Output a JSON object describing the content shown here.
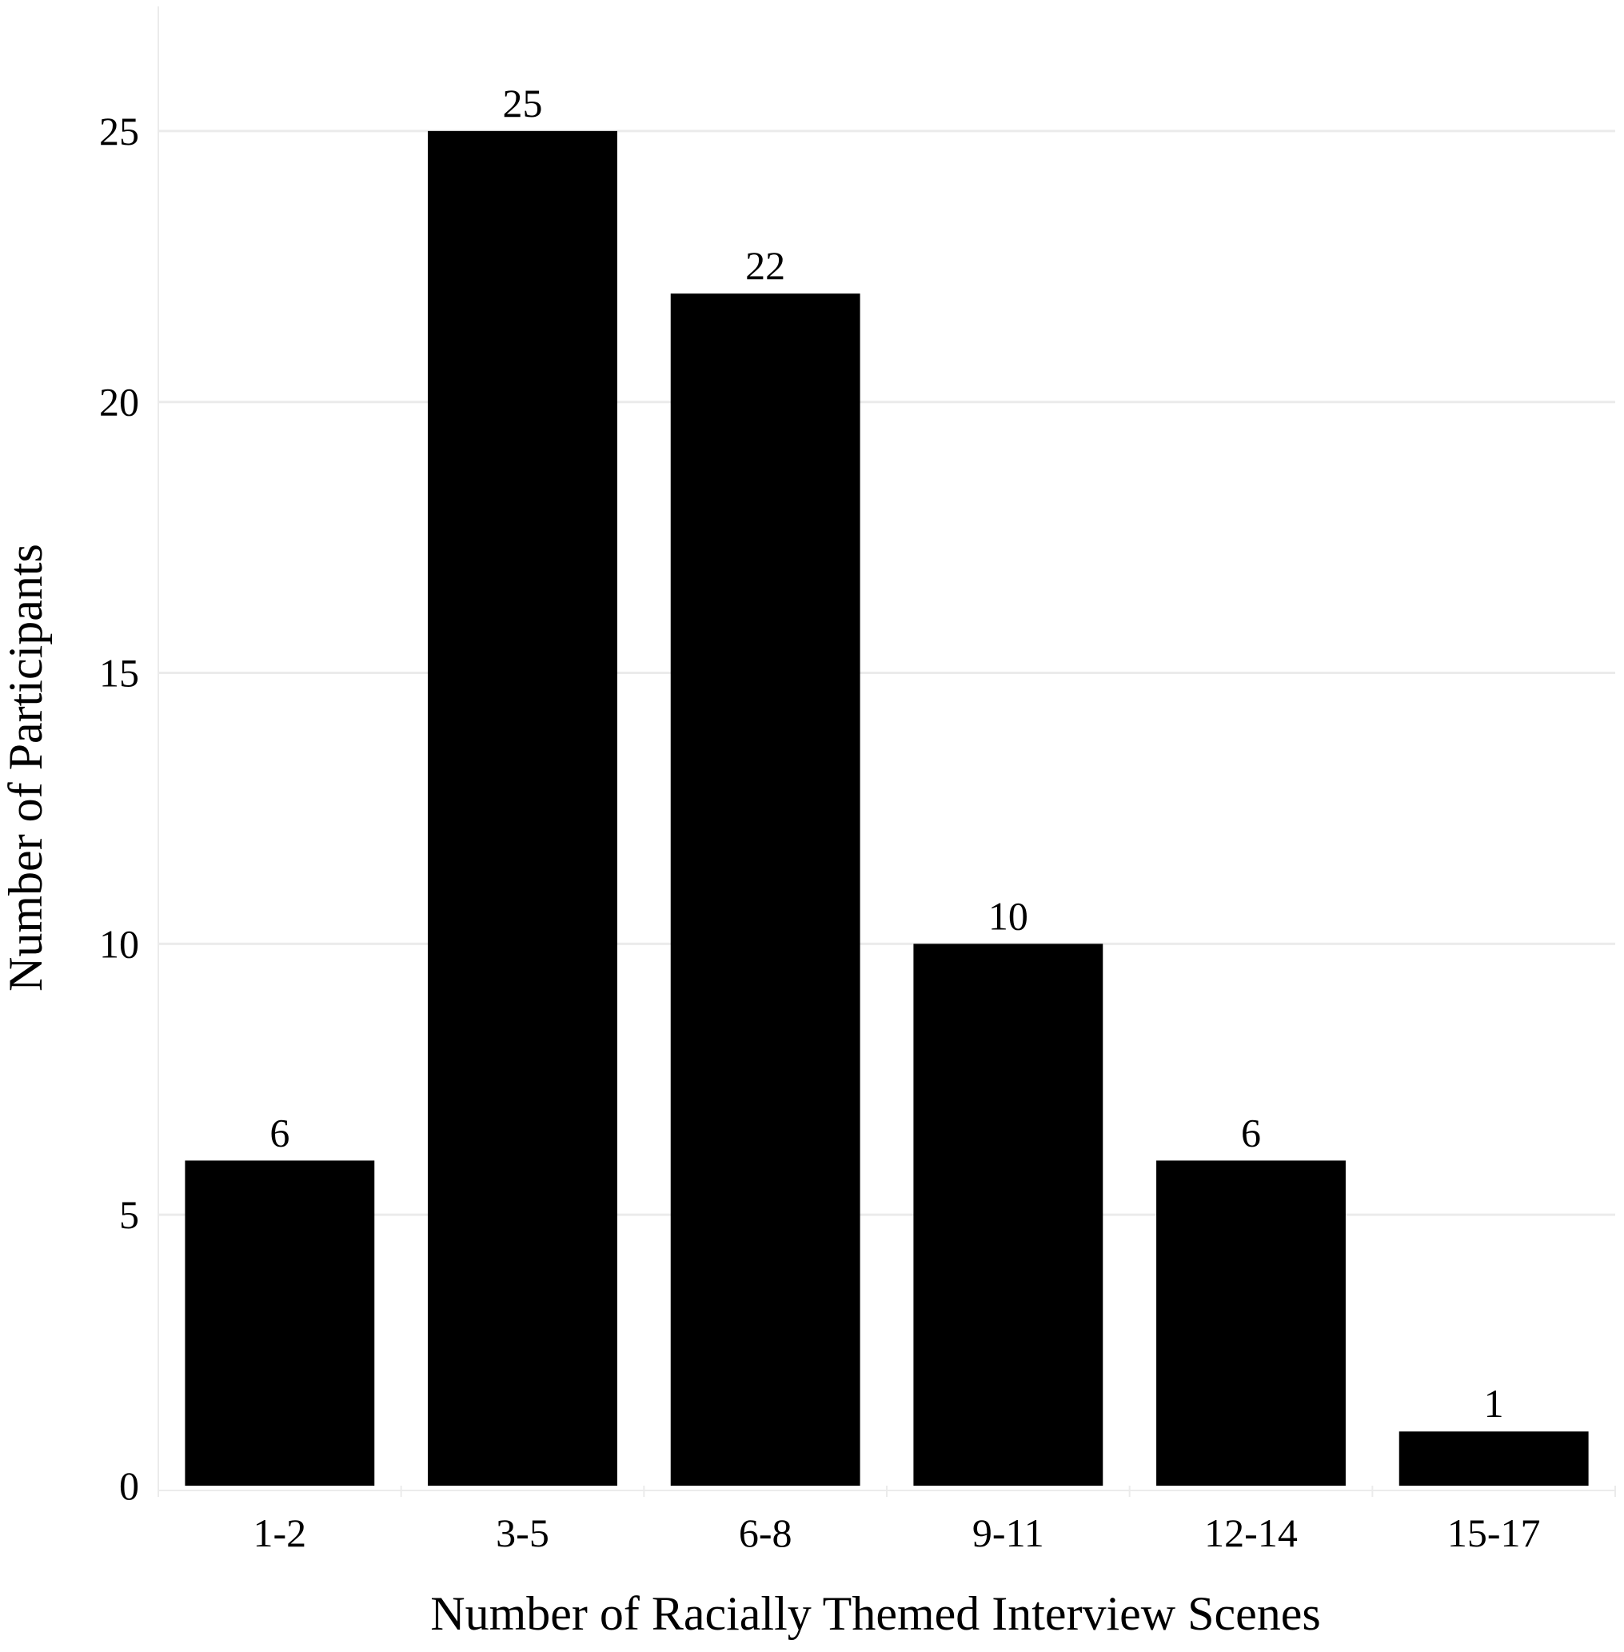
{
  "chart_data": {
    "type": "bar",
    "categories": [
      "1-2",
      "3-5",
      "6-8",
      "9-11",
      "12-14",
      "15-17"
    ],
    "values": [
      6,
      25,
      22,
      10,
      6,
      1
    ],
    "data_labels": [
      "6",
      "25",
      "22",
      "10",
      "6",
      "1"
    ],
    "title": "",
    "xlabel": "Number of Racially Themed Interview Scenes",
    "ylabel": "Number of Participants",
    "ylim": [
      0,
      27.3
    ],
    "yticks": [
      0,
      5,
      10,
      15,
      20,
      25
    ],
    "grid": true,
    "colors": {
      "bar": "#000000",
      "grid": "#ebebeb",
      "background": "#ffffff"
    }
  }
}
